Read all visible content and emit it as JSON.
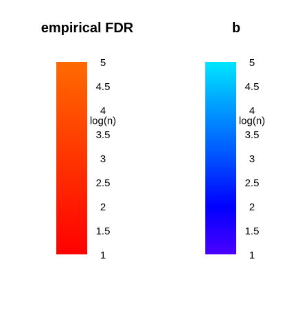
{
  "chart_data": [
    {
      "type": "colorbar",
      "title": "empirical FDR",
      "axis_label": "log(n)",
      "range": [
        1,
        5
      ],
      "ticks": [
        {
          "value": 5,
          "label": "5"
        },
        {
          "value": 4.5,
          "label": "4.5"
        },
        {
          "value": 4,
          "label": "4"
        },
        {
          "value": 3.5,
          "label": "3.5"
        },
        {
          "value": 3,
          "label": "3"
        },
        {
          "value": 2.5,
          "label": "2.5"
        },
        {
          "value": 2,
          "label": "2"
        },
        {
          "value": 1.5,
          "label": "1.5"
        },
        {
          "value": 1,
          "label": "1"
        }
      ],
      "gradient": [
        {
          "value": 1,
          "color": "#ff0000"
        },
        {
          "value": 5,
          "color": "#ff6a00"
        }
      ]
    },
    {
      "type": "colorbar",
      "title": "b",
      "axis_label": "log(n)",
      "range": [
        1,
        5
      ],
      "ticks": [
        {
          "value": 5,
          "label": "5"
        },
        {
          "value": 4.5,
          "label": "4.5"
        },
        {
          "value": 4,
          "label": "4"
        },
        {
          "value": 3.5,
          "label": "3.5"
        },
        {
          "value": 3,
          "label": "3"
        },
        {
          "value": 2.5,
          "label": "2.5"
        },
        {
          "value": 2,
          "label": "2"
        },
        {
          "value": 1.5,
          "label": "1.5"
        },
        {
          "value": 1,
          "label": "1"
        }
      ],
      "gradient": [
        {
          "value": 1,
          "color": "#4a00ff"
        },
        {
          "value": 2,
          "color": "#0000ff"
        },
        {
          "value": 3,
          "color": "#0050ff"
        },
        {
          "value": 4,
          "color": "#0098ff"
        },
        {
          "value": 5,
          "color": "#00e6ff"
        }
      ]
    }
  ]
}
